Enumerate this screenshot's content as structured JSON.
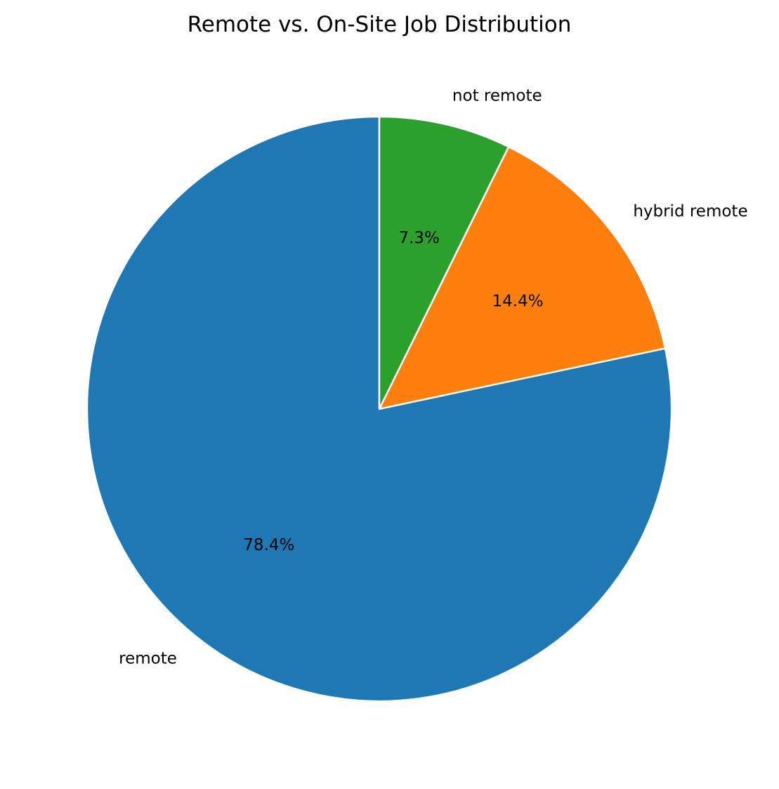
{
  "chart_data": {
    "type": "pie",
    "title": "Remote vs. On-Site Job Distribution",
    "start_angle_deg": 90,
    "direction": "counterclockwise",
    "slices": [
      {
        "label": "remote",
        "value": 78.4,
        "pct_label": "78.4%",
        "color": "#1f77b4"
      },
      {
        "label": "hybrid remote",
        "value": 14.4,
        "pct_label": "14.4%",
        "color": "#ff7f0e"
      },
      {
        "label": "not remote",
        "value": 7.3,
        "pct_label": "7.3%",
        "color": "#2ca02c"
      }
    ],
    "edge_color": "#ffffff",
    "legend": "none"
  }
}
